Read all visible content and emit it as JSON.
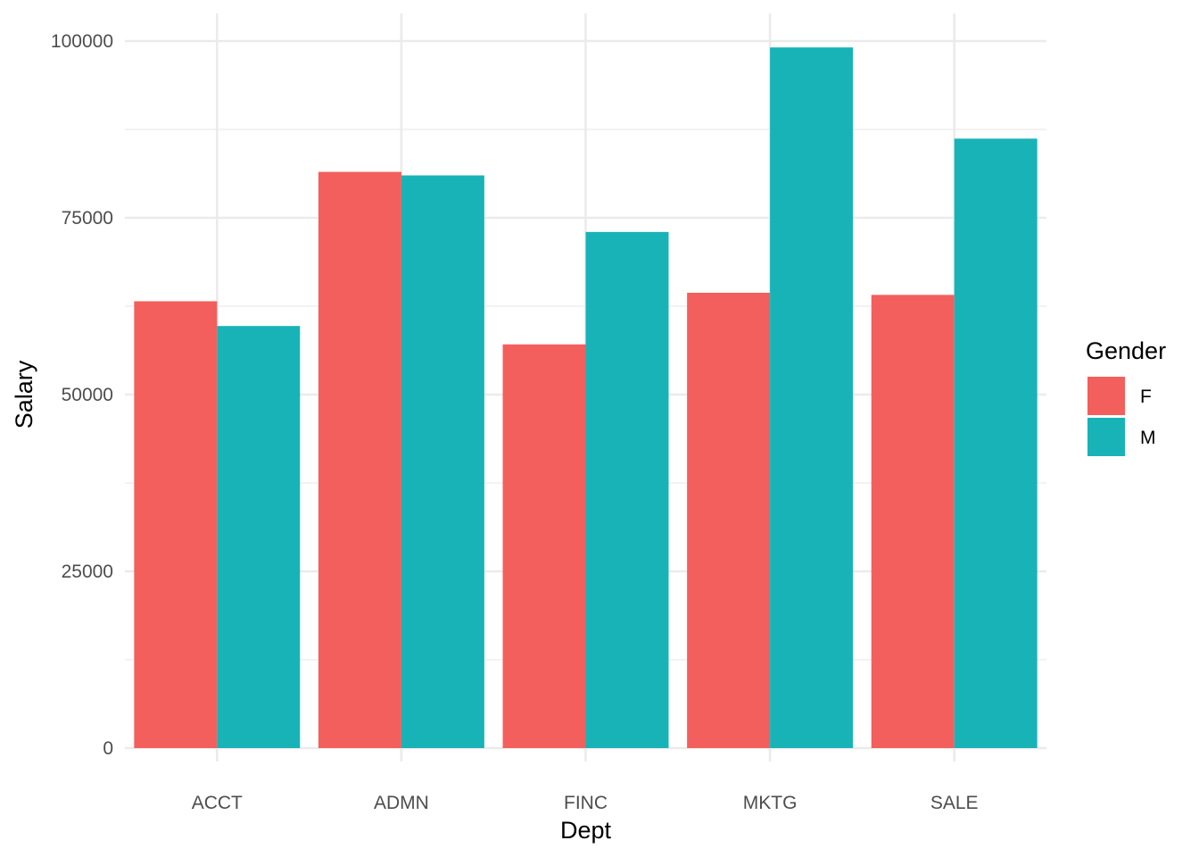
{
  "chart_data": {
    "type": "bar",
    "categories": [
      "ACCT",
      "ADMN",
      "FINC",
      "MKTG",
      "SALE"
    ],
    "series": [
      {
        "name": "F",
        "color": "#F25F5C",
        "values": [
          63200,
          81500,
          57100,
          64400,
          64100
        ]
      },
      {
        "name": "M",
        "color": "#18B3B7",
        "values": [
          59700,
          81000,
          73000,
          99100,
          86200
        ]
      }
    ],
    "xlabel": "Dept",
    "ylabel": "Salary",
    "ylim": [
      0,
      100000
    ],
    "yticks": [
      "0",
      "25000",
      "50000",
      "75000",
      "100000"
    ],
    "ytick_values": [
      0,
      25000,
      50000,
      75000,
      100000
    ],
    "legend_title": "Gender",
    "legend_position": "right",
    "grid": true
  }
}
